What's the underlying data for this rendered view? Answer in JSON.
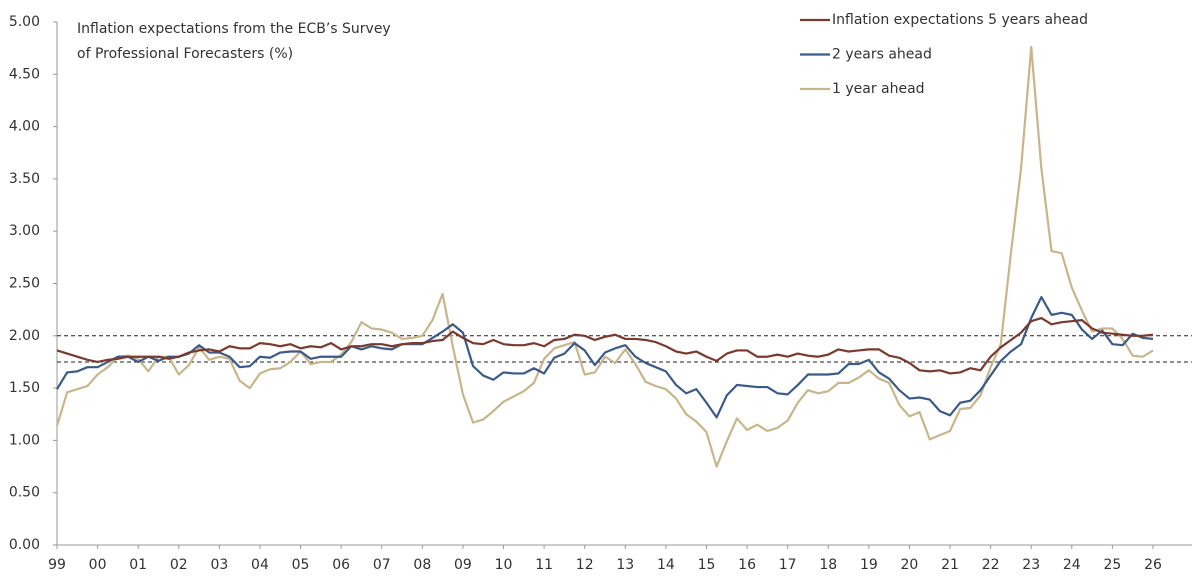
{
  "chart_data": {
    "type": "line",
    "title": "Inflation expectations from the ECB’s Survey of Professional Forecasters (%)",
    "categories": [
      "99",
      null,
      null,
      null,
      "00",
      null,
      null,
      null,
      "01",
      null,
      null,
      null,
      "02",
      null,
      null,
      null,
      "03",
      null,
      null,
      null,
      "04",
      null,
      null,
      null,
      "05",
      null,
      null,
      null,
      "06",
      null,
      null,
      null,
      "07",
      null,
      null,
      null,
      "08",
      null,
      null,
      null,
      "09",
      null,
      null,
      null,
      "10",
      null,
      null,
      null,
      "11",
      null,
      null,
      null,
      "12",
      null,
      null,
      null,
      "13",
      null,
      null,
      null,
      "14",
      null,
      null,
      null,
      "15",
      null,
      null,
      null,
      "16",
      null,
      null,
      null,
      "17",
      null,
      null,
      null,
      "18",
      null,
      null,
      null,
      "19",
      null,
      null,
      null,
      "20",
      null,
      null,
      null,
      "21",
      null,
      null,
      null,
      "22",
      null,
      null,
      null,
      "23",
      null,
      null,
      null,
      "24",
      null,
      null,
      null,
      "25",
      null,
      null,
      null,
      "26"
    ],
    "series": [
      {
        "name": "Inflation expectations 5 years ahead",
        "color": "#7b3a2e",
        "values": [
          1.86,
          1.83,
          1.8,
          1.77,
          1.75,
          1.77,
          1.78,
          1.8,
          1.8,
          1.8,
          1.8,
          1.78,
          1.8,
          1.84,
          1.86,
          1.87,
          1.85,
          1.9,
          1.88,
          1.88,
          1.93,
          1.92,
          1.9,
          1.92,
          1.88,
          1.9,
          1.89,
          1.93,
          1.87,
          1.9,
          1.9,
          1.92,
          1.92,
          1.9,
          1.92,
          1.93,
          1.93,
          1.95,
          1.96,
          2.04,
          1.98,
          1.93,
          1.92,
          1.96,
          1.92,
          1.91,
          1.91,
          1.93,
          1.9,
          1.96,
          1.97,
          2.01,
          2.0,
          1.96,
          1.99,
          2.01,
          1.97,
          1.97,
          1.96,
          1.94,
          1.9,
          1.85,
          1.83,
          1.85,
          1.8,
          1.76,
          1.83,
          1.86,
          1.86,
          1.8,
          1.8,
          1.82,
          1.8,
          1.83,
          1.81,
          1.8,
          1.82,
          1.87,
          1.85,
          1.86,
          1.87,
          1.87,
          1.81,
          1.79,
          1.74,
          1.67,
          1.66,
          1.67,
          1.64,
          1.65,
          1.69,
          1.67,
          1.8,
          1.89,
          1.96,
          2.03,
          2.14,
          2.17,
          2.11,
          2.13,
          2.14,
          2.15,
          2.07,
          2.03,
          2.02,
          2.01,
          2.0,
          2.0,
          2.01
        ]
      },
      {
        "name": "2 years ahead",
        "color": "#3a5a8a",
        "values": [
          1.49,
          1.65,
          1.66,
          1.7,
          1.7,
          1.75,
          1.8,
          1.8,
          1.75,
          1.8,
          1.76,
          1.8,
          1.8,
          1.83,
          1.91,
          1.84,
          1.84,
          1.8,
          1.7,
          1.71,
          1.8,
          1.79,
          1.84,
          1.85,
          1.85,
          1.78,
          1.8,
          1.8,
          1.8,
          1.9,
          1.87,
          1.9,
          1.88,
          1.87,
          1.92,
          1.92,
          1.92,
          1.98,
          2.04,
          2.11,
          2.03,
          1.71,
          1.62,
          1.58,
          1.65,
          1.64,
          1.64,
          1.69,
          1.64,
          1.79,
          1.83,
          1.93,
          1.86,
          1.72,
          1.84,
          1.88,
          1.91,
          1.8,
          1.74,
          1.7,
          1.66,
          1.53,
          1.45,
          1.49,
          1.36,
          1.22,
          1.43,
          1.53,
          1.52,
          1.51,
          1.51,
          1.45,
          1.44,
          1.53,
          1.63,
          1.63,
          1.63,
          1.64,
          1.73,
          1.73,
          1.77,
          1.65,
          1.59,
          1.48,
          1.4,
          1.41,
          1.39,
          1.28,
          1.24,
          1.36,
          1.38,
          1.48,
          1.62,
          1.76,
          1.85,
          1.92,
          2.17,
          2.37,
          2.2,
          2.22,
          2.2,
          2.06,
          1.97,
          2.05,
          1.92,
          1.91,
          2.02,
          1.98,
          1.97
        ]
      },
      {
        "name": "1 year ahead",
        "color": "#c8b68a",
        "values": [
          1.14,
          1.46,
          1.49,
          1.52,
          1.63,
          1.7,
          1.8,
          1.81,
          1.78,
          1.66,
          1.8,
          1.8,
          1.63,
          1.72,
          1.89,
          1.77,
          1.8,
          1.78,
          1.57,
          1.5,
          1.64,
          1.68,
          1.69,
          1.75,
          1.85,
          1.73,
          1.75,
          1.75,
          1.82,
          1.94,
          2.13,
          2.07,
          2.06,
          2.03,
          1.97,
          1.98,
          2.0,
          2.15,
          2.4,
          1.9,
          1.44,
          1.17,
          1.2,
          1.28,
          1.37,
          1.42,
          1.47,
          1.55,
          1.78,
          1.88,
          1.91,
          1.94,
          1.63,
          1.65,
          1.8,
          1.74,
          1.87,
          1.73,
          1.56,
          1.52,
          1.49,
          1.4,
          1.25,
          1.18,
          1.08,
          0.75,
          0.99,
          1.21,
          1.1,
          1.15,
          1.09,
          1.12,
          1.19,
          1.36,
          1.48,
          1.45,
          1.47,
          1.55,
          1.55,
          1.6,
          1.67,
          1.59,
          1.55,
          1.34,
          1.23,
          1.27,
          1.01,
          1.05,
          1.09,
          1.3,
          1.31,
          1.43,
          1.7,
          1.92,
          2.79,
          3.6,
          4.76,
          3.6,
          2.81,
          2.79,
          2.46,
          2.24,
          2.04,
          2.07,
          2.07,
          1.97,
          1.81,
          1.8,
          1.86
        ]
      }
    ],
    "reference_lines": [
      2.0,
      1.75
    ],
    "ylim": [
      0,
      5
    ],
    "yticks": [
      {
        "value": 0,
        "label": "0.00"
      },
      {
        "value": 0.5,
        "label": "0.50"
      },
      {
        "value": 1,
        "label": "1.00"
      },
      {
        "value": 1.5,
        "label": "1.50"
      },
      {
        "value": 2,
        "label": "2.00"
      },
      {
        "value": 2.5,
        "label": "2.50"
      },
      {
        "value": 3,
        "label": "3.00"
      },
      {
        "value": 3.5,
        "label": "3.50"
      },
      {
        "value": 4,
        "label": "4.00"
      },
      {
        "value": 4.5,
        "label": "4.50"
      },
      {
        "value": 5,
        "label": "5.00"
      }
    ],
    "legend": "top-right"
  }
}
